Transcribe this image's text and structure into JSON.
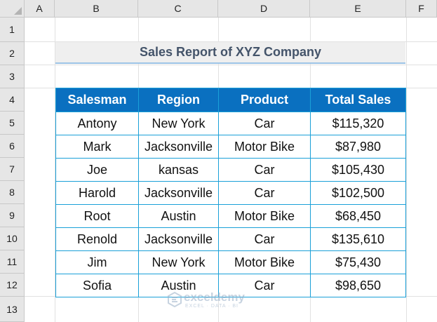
{
  "columns": [
    "A",
    "B",
    "C",
    "D",
    "E",
    "F"
  ],
  "rows": [
    "1",
    "2",
    "3",
    "4",
    "5",
    "6",
    "7",
    "8",
    "9",
    "10",
    "11",
    "12",
    "13"
  ],
  "title": "Sales Report of XYZ Company",
  "table": {
    "headers": [
      "Salesman",
      "Region",
      "Product",
      "Total Sales"
    ],
    "rows": [
      [
        "Antony",
        "New York",
        "Car",
        "$115,320"
      ],
      [
        "Mark",
        "Jacksonville",
        "Motor Bike",
        "$87,980"
      ],
      [
        "Joe",
        "kansas",
        "Car",
        "$105,430"
      ],
      [
        "Harold",
        "Jacksonville",
        "Car",
        "$102,500"
      ],
      [
        "Root",
        "Austin",
        "Motor Bike",
        "$68,450"
      ],
      [
        "Renold",
        "Jacksonville",
        "Car",
        "$135,610"
      ],
      [
        "Jim",
        "New York",
        "Motor Bike",
        "$75,430"
      ],
      [
        "Sofia",
        "Austin",
        "Car",
        "$98,650"
      ]
    ]
  },
  "watermark": {
    "name": "exceldemy",
    "tagline": "EXCEL · DATA · BI",
    "icon": "exceldemy-logo-icon"
  },
  "colors": {
    "header_fill": "#0a70c0",
    "border": "#1aa0d8",
    "title_text": "#44546a",
    "title_underline": "#9cc3e6"
  }
}
